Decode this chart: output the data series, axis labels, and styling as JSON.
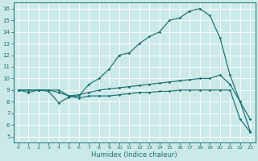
{
  "xlabel": "Humidex (Indice chaleur)",
  "bg_color": "#cce9e9",
  "grid_color": "#ffffff",
  "line_color": "#1a7070",
  "xlim": [
    -0.5,
    23.5
  ],
  "ylim": [
    4.5,
    16.5
  ],
  "xticks": [
    0,
    1,
    2,
    3,
    4,
    5,
    6,
    7,
    8,
    9,
    10,
    11,
    12,
    13,
    14,
    15,
    16,
    17,
    18,
    19,
    20,
    21,
    22,
    23
  ],
  "yticks": [
    5,
    6,
    7,
    8,
    9,
    10,
    11,
    12,
    13,
    14,
    15,
    16
  ],
  "lines": [
    {
      "x": [
        0,
        1,
        2,
        3,
        4,
        5,
        6,
        7,
        8,
        9,
        10,
        11,
        12,
        13,
        14,
        15,
        16,
        17,
        18,
        19,
        20,
        21,
        22,
        23
      ],
      "y": [
        9,
        8.8,
        9.0,
        8.9,
        7.9,
        8.4,
        8.5,
        9.5,
        10.0,
        10.8,
        12.0,
        12.2,
        13.0,
        13.6,
        14.0,
        15.0,
        15.2,
        15.8,
        16.0,
        15.4,
        13.5,
        10.3,
        8.0,
        6.5
      ]
    },
    {
      "x": [
        0,
        1,
        2,
        3,
        4,
        5,
        6,
        7,
        8,
        9,
        10,
        11,
        12,
        13,
        14,
        15,
        16,
        17,
        18,
        19,
        20,
        21,
        22,
        23
      ],
      "y": [
        9,
        9.0,
        9.0,
        9.0,
        8.8,
        8.5,
        8.6,
        8.8,
        9.0,
        9.1,
        9.2,
        9.3,
        9.4,
        9.5,
        9.6,
        9.7,
        9.8,
        9.9,
        10.0,
        10.0,
        10.3,
        9.5,
        8.0,
        5.5
      ]
    },
    {
      "x": [
        0,
        1,
        2,
        3,
        4,
        5,
        6,
        7,
        8,
        9,
        10,
        11,
        12,
        13,
        14,
        15,
        16,
        17,
        18,
        19,
        20,
        21,
        22,
        23
      ],
      "y": [
        9,
        9.0,
        9.0,
        9.0,
        9.0,
        8.5,
        8.3,
        8.5,
        8.5,
        8.5,
        8.6,
        8.7,
        8.8,
        8.8,
        8.9,
        8.9,
        9.0,
        9.0,
        9.0,
        9.0,
        9.0,
        9.0,
        6.5,
        5.4
      ]
    }
  ]
}
